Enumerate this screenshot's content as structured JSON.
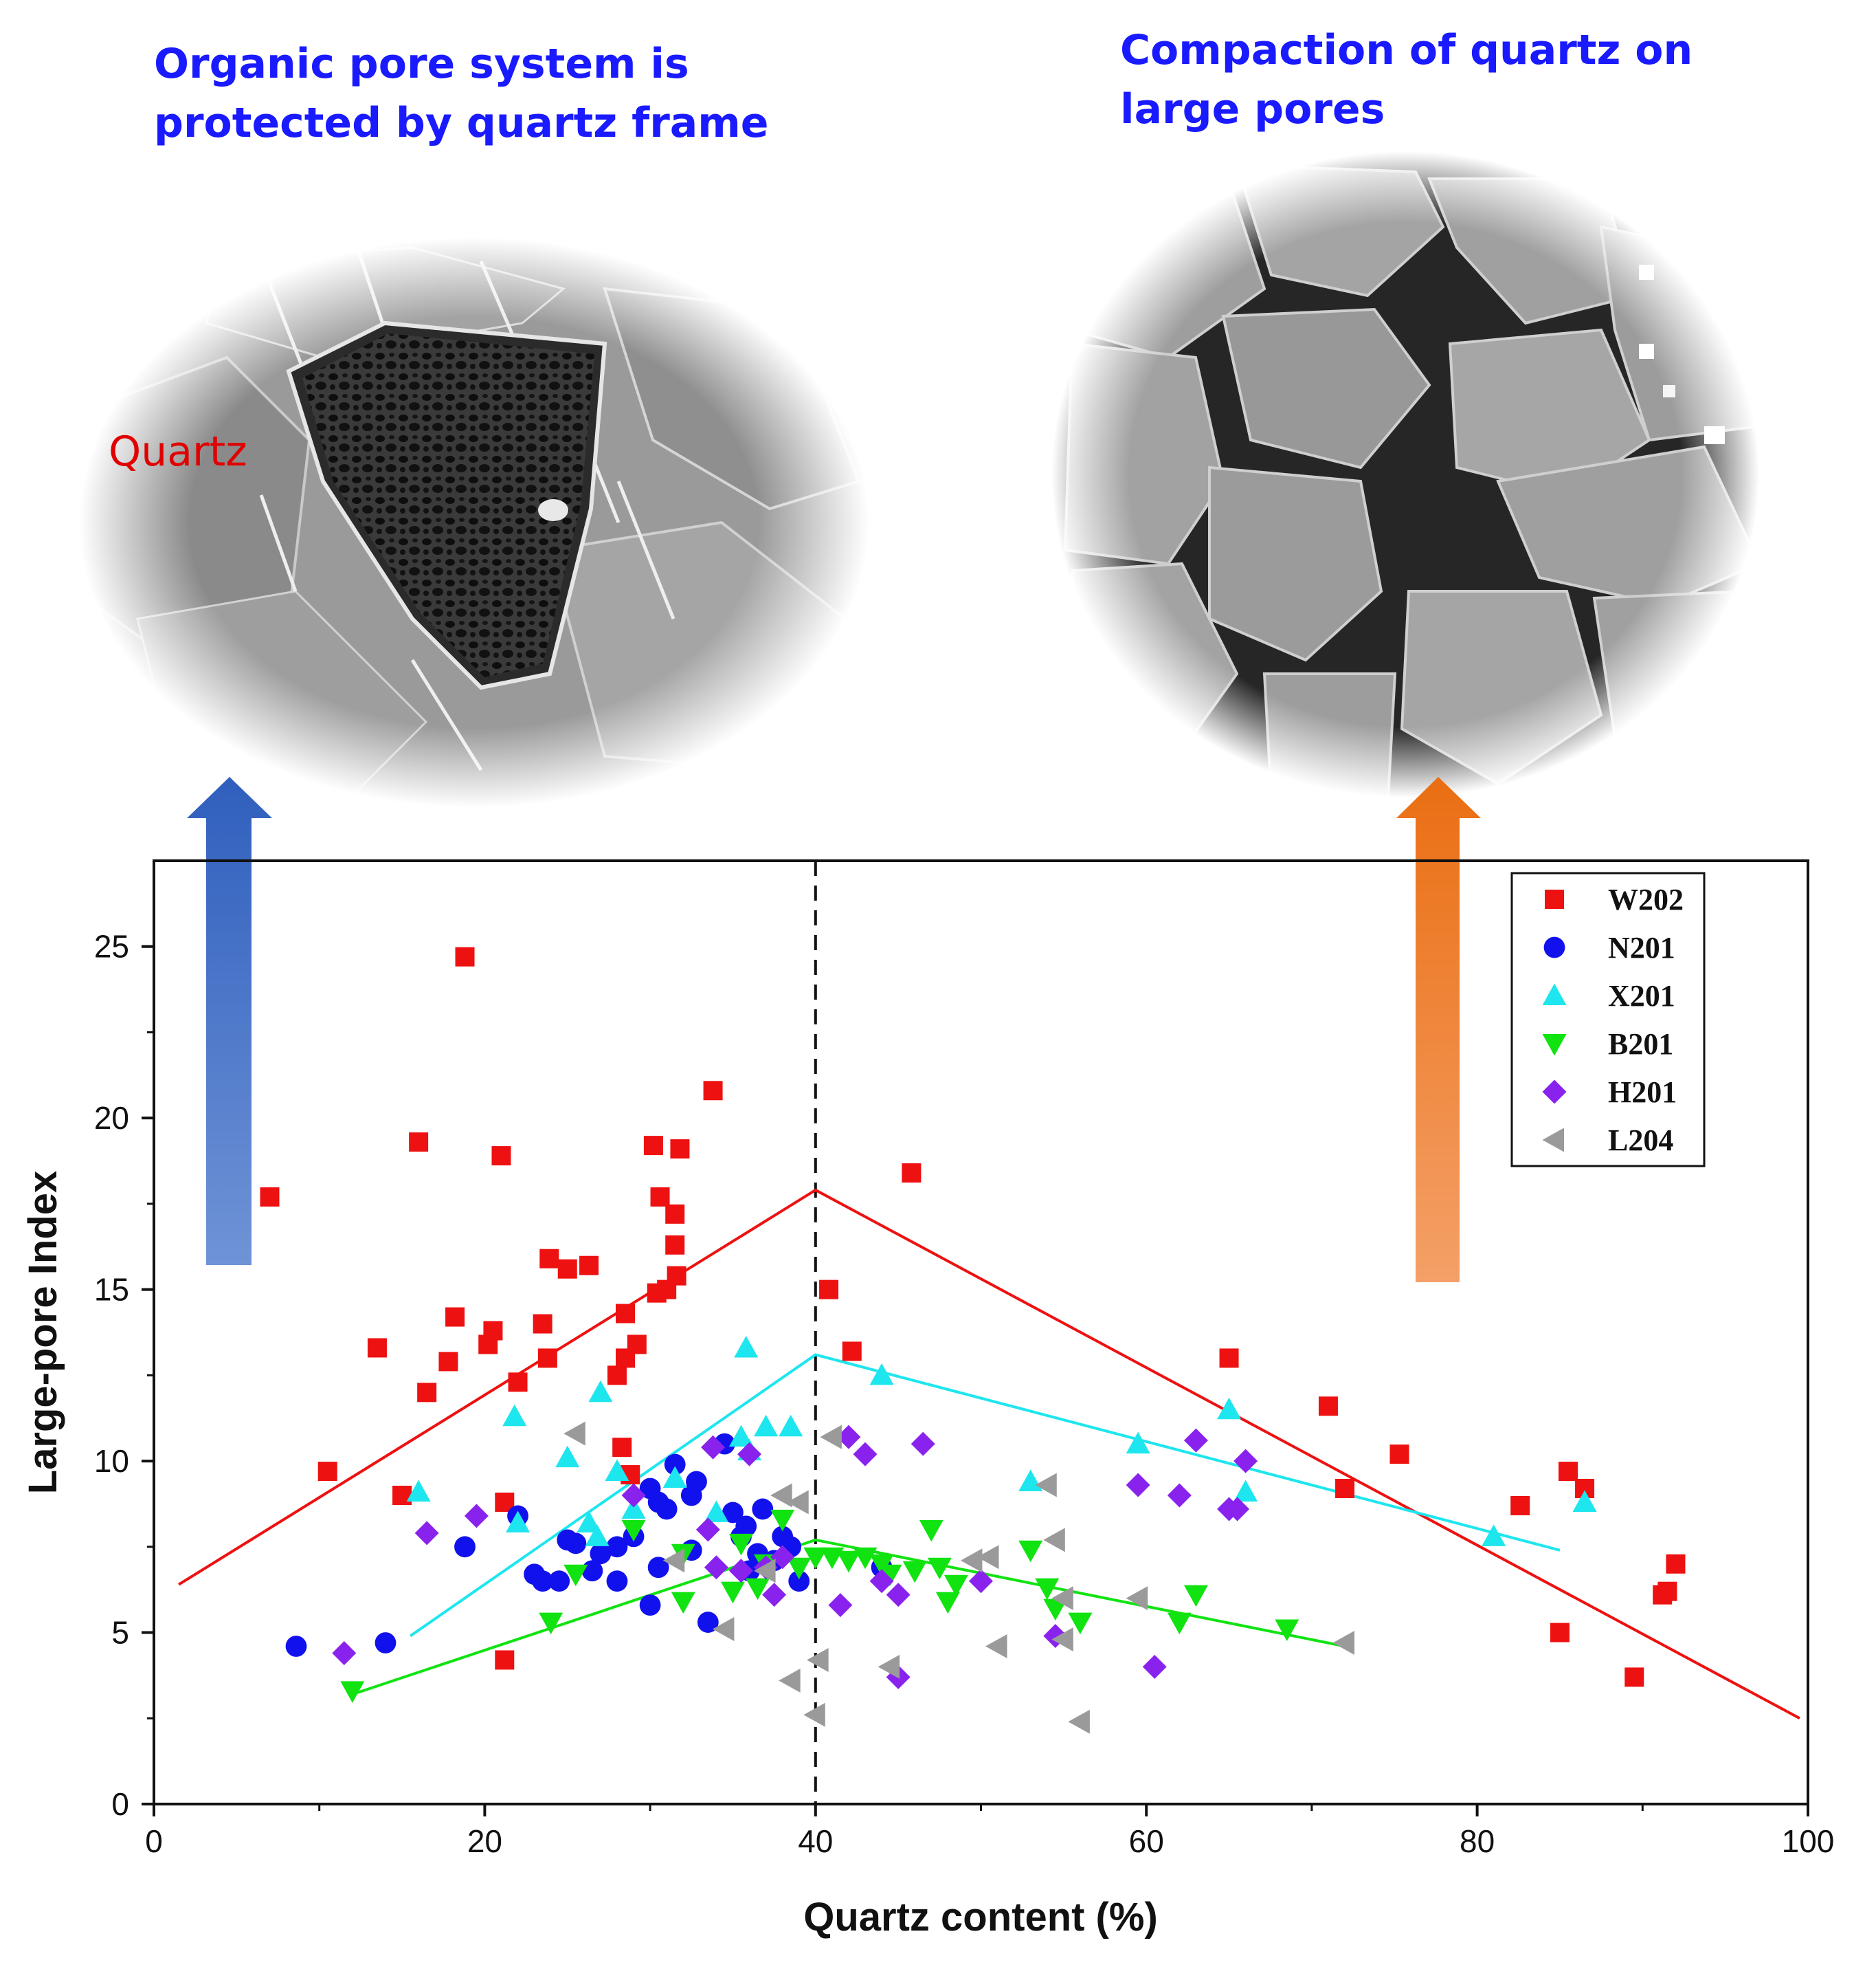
{
  "captions": {
    "left": [
      "Organic pore system is",
      "protected by quartz frame"
    ],
    "right": [
      "Compaction of quartz on",
      "large pores"
    ]
  },
  "photos": {
    "left_label": "Quartz",
    "left_description_hidden": null
  },
  "colors": {
    "caption": "#1a1aff",
    "arrow_left": "#3a6fc4",
    "arrow_right": "#f07d25",
    "W202": "#ee1111",
    "N201": "#1111ee",
    "X201": "#1ee6ee",
    "B201": "#11e311",
    "H201": "#8a22ee",
    "L204": "#9a9a9a"
  },
  "chart_data": {
    "type": "scatter",
    "xlabel": "Quartz content (%)",
    "ylabel": "Large-pore Index",
    "xlim": [
      0,
      100
    ],
    "ylim": [
      0,
      27.5
    ],
    "xticks": [
      0,
      20,
      40,
      60,
      80,
      100
    ],
    "yticks": [
      0,
      5,
      10,
      15,
      20,
      25
    ],
    "legend_position": "top-right",
    "divider_x": 40,
    "series": [
      {
        "name": "W202",
        "marker": "square",
        "color": "#ee1111",
        "points": [
          [
            7,
            17.7
          ],
          [
            10.5,
            9.7
          ],
          [
            13.5,
            13.3
          ],
          [
            15,
            9
          ],
          [
            16,
            19.3
          ],
          [
            16.5,
            12
          ],
          [
            17.8,
            12.9
          ],
          [
            18.2,
            14.2
          ],
          [
            18.8,
            24.7
          ],
          [
            20.2,
            13.4
          ],
          [
            20.5,
            13.8
          ],
          [
            21,
            18.9
          ],
          [
            21.2,
            8.8
          ],
          [
            21.2,
            4.2
          ],
          [
            22,
            12.3
          ],
          [
            23.5,
            14
          ],
          [
            23.8,
            13
          ],
          [
            23.9,
            15.9
          ],
          [
            25,
            15.6
          ],
          [
            26.3,
            15.7
          ],
          [
            28,
            12.5
          ],
          [
            28.3,
            10.4
          ],
          [
            28.5,
            13
          ],
          [
            28.5,
            14.3
          ],
          [
            28.8,
            9.6
          ],
          [
            29.2,
            13.4
          ],
          [
            30.2,
            19.2
          ],
          [
            30.4,
            14.9
          ],
          [
            30.6,
            17.7
          ],
          [
            31,
            15
          ],
          [
            31.5,
            16.3
          ],
          [
            31.5,
            17.2
          ],
          [
            31.6,
            15.4
          ],
          [
            31.8,
            19.1
          ],
          [
            33.8,
            20.8
          ],
          [
            40.8,
            15
          ],
          [
            42.2,
            13.2
          ],
          [
            45.8,
            18.4
          ],
          [
            65,
            13
          ],
          [
            71,
            11.6
          ],
          [
            72,
            9.2
          ],
          [
            75.3,
            10.2
          ],
          [
            82.6,
            8.7
          ],
          [
            85,
            5
          ],
          [
            85.5,
            9.7
          ],
          [
            86.5,
            9.2
          ],
          [
            89.5,
            3.7
          ],
          [
            91.2,
            6.1
          ],
          [
            91.5,
            6.2
          ],
          [
            92,
            7
          ]
        ]
      },
      {
        "name": "N201",
        "marker": "circle",
        "color": "#1111ee",
        "points": [
          [
            8.6,
            4.6
          ],
          [
            14,
            4.7
          ],
          [
            18.8,
            7.5
          ],
          [
            22,
            8.4
          ],
          [
            23,
            6.7
          ],
          [
            23.5,
            6.5
          ],
          [
            24.5,
            6.5
          ],
          [
            25,
            7.7
          ],
          [
            25.5,
            7.6
          ],
          [
            26.5,
            6.8
          ],
          [
            27,
            7.3
          ],
          [
            28,
            7.5
          ],
          [
            28,
            6.5
          ],
          [
            29,
            7.8
          ],
          [
            30,
            9.2
          ],
          [
            30,
            5.8
          ],
          [
            30.5,
            8.8
          ],
          [
            30.5,
            6.9
          ],
          [
            31,
            8.6
          ],
          [
            31.5,
            9.9
          ],
          [
            32.5,
            7.4
          ],
          [
            32.5,
            9
          ],
          [
            32.8,
            9.4
          ],
          [
            33.5,
            5.3
          ],
          [
            34.5,
            10.5
          ],
          [
            35,
            8.5
          ],
          [
            35.5,
            7.8
          ],
          [
            35.8,
            8.1
          ],
          [
            36,
            6.8
          ],
          [
            36.5,
            7.3
          ],
          [
            36.8,
            8.6
          ],
          [
            37.5,
            7.1
          ],
          [
            38,
            7.8
          ],
          [
            38.5,
            7.5
          ],
          [
            39,
            6.5
          ],
          [
            44,
            6.9
          ]
        ]
      },
      {
        "name": "X201",
        "marker": "triangle-up",
        "color": "#1ee6ee",
        "points": [
          [
            16,
            9.1
          ],
          [
            21.8,
            11.3
          ],
          [
            22,
            8.2
          ],
          [
            25,
            10.1
          ],
          [
            26.3,
            8.2
          ],
          [
            26.8,
            7.8
          ],
          [
            27,
            12
          ],
          [
            28,
            9.7
          ],
          [
            29,
            8.6
          ],
          [
            31.5,
            9.5
          ],
          [
            34,
            8.5
          ],
          [
            35.5,
            10.7
          ],
          [
            35.8,
            13.3
          ],
          [
            36,
            10.3
          ],
          [
            37,
            11
          ],
          [
            38.5,
            11
          ],
          [
            44,
            12.5
          ],
          [
            53,
            9.4
          ],
          [
            59.5,
            10.5
          ],
          [
            65,
            11.5
          ],
          [
            66,
            9.1
          ],
          [
            81,
            7.8
          ],
          [
            86.5,
            8.8
          ]
        ]
      },
      {
        "name": "B201",
        "marker": "triangle-down",
        "color": "#11e311",
        "points": [
          [
            12,
            3.3
          ],
          [
            24,
            5.3
          ],
          [
            25.5,
            6.7
          ],
          [
            29,
            8
          ],
          [
            32,
            7.3
          ],
          [
            32,
            5.9
          ],
          [
            35,
            6.2
          ],
          [
            35.5,
            7.6
          ],
          [
            36.5,
            6.3
          ],
          [
            37,
            7
          ],
          [
            38,
            8.3
          ],
          [
            39,
            6.9
          ],
          [
            40,
            7.2
          ],
          [
            41,
            7.2
          ],
          [
            42,
            7.1
          ],
          [
            43,
            7.2
          ],
          [
            44,
            7
          ],
          [
            44.5,
            6.7
          ],
          [
            46,
            6.8
          ],
          [
            47,
            8
          ],
          [
            47.5,
            6.9
          ],
          [
            48,
            5.9
          ],
          [
            48.5,
            6.4
          ],
          [
            53,
            7.4
          ],
          [
            54,
            6.3
          ],
          [
            54.5,
            5.7
          ],
          [
            56,
            5.3
          ],
          [
            62,
            5.3
          ],
          [
            63,
            6.1
          ],
          [
            68.5,
            5.1
          ]
        ]
      },
      {
        "name": "H201",
        "marker": "diamond",
        "color": "#8a22ee",
        "points": [
          [
            11.5,
            4.4
          ],
          [
            16.5,
            7.9
          ],
          [
            19.5,
            8.4
          ],
          [
            29,
            9
          ],
          [
            33.5,
            8
          ],
          [
            33.8,
            10.4
          ],
          [
            34,
            6.9
          ],
          [
            35.5,
            6.8
          ],
          [
            36,
            10.2
          ],
          [
            37,
            6.9
          ],
          [
            37.5,
            6.1
          ],
          [
            38,
            7.2
          ],
          [
            41.5,
            5.8
          ],
          [
            42,
            10.7
          ],
          [
            43,
            10.2
          ],
          [
            44,
            6.5
          ],
          [
            45,
            6.1
          ],
          [
            45,
            3.7
          ],
          [
            46.5,
            10.5
          ],
          [
            50,
            6.5
          ],
          [
            54.5,
            4.9
          ],
          [
            59.5,
            9.3
          ],
          [
            60.5,
            4
          ],
          [
            62,
            9
          ],
          [
            63,
            10.6
          ],
          [
            65,
            8.6
          ],
          [
            65.5,
            8.6
          ],
          [
            66,
            10
          ]
        ]
      },
      {
        "name": "L204",
        "marker": "triangle-left",
        "color": "#9a9a9a",
        "points": [
          [
            25.5,
            10.8
          ],
          [
            31.5,
            7.1
          ],
          [
            34.5,
            5.1
          ],
          [
            37,
            6.8
          ],
          [
            38,
            9
          ],
          [
            38.5,
            3.6
          ],
          [
            39,
            8.8
          ],
          [
            40,
            2.6
          ],
          [
            40.2,
            4.2
          ],
          [
            41,
            10.7
          ],
          [
            44.5,
            4
          ],
          [
            49.5,
            7.1
          ],
          [
            50.5,
            7.2
          ],
          [
            51,
            4.6
          ],
          [
            54,
            9.3
          ],
          [
            54.5,
            7.7
          ],
          [
            55,
            6
          ],
          [
            55,
            4.8
          ],
          [
            56,
            2.4
          ],
          [
            59.5,
            6
          ],
          [
            72,
            4.7
          ]
        ]
      }
    ],
    "trend_lines": [
      {
        "name": "W202-trend",
        "color": "#ee1111",
        "points": [
          [
            1.5,
            6.4
          ],
          [
            40,
            17.9
          ],
          [
            99.5,
            2.5
          ]
        ]
      },
      {
        "name": "X201-trend",
        "color": "#1ee6ee",
        "points": [
          [
            15.5,
            4.9
          ],
          [
            40,
            13.1
          ],
          [
            85,
            7.4
          ]
        ]
      },
      {
        "name": "B201-trend",
        "color": "#11e311",
        "points": [
          [
            12,
            3.2
          ],
          [
            40,
            7.7
          ],
          [
            72,
            4.6
          ]
        ]
      }
    ]
  }
}
